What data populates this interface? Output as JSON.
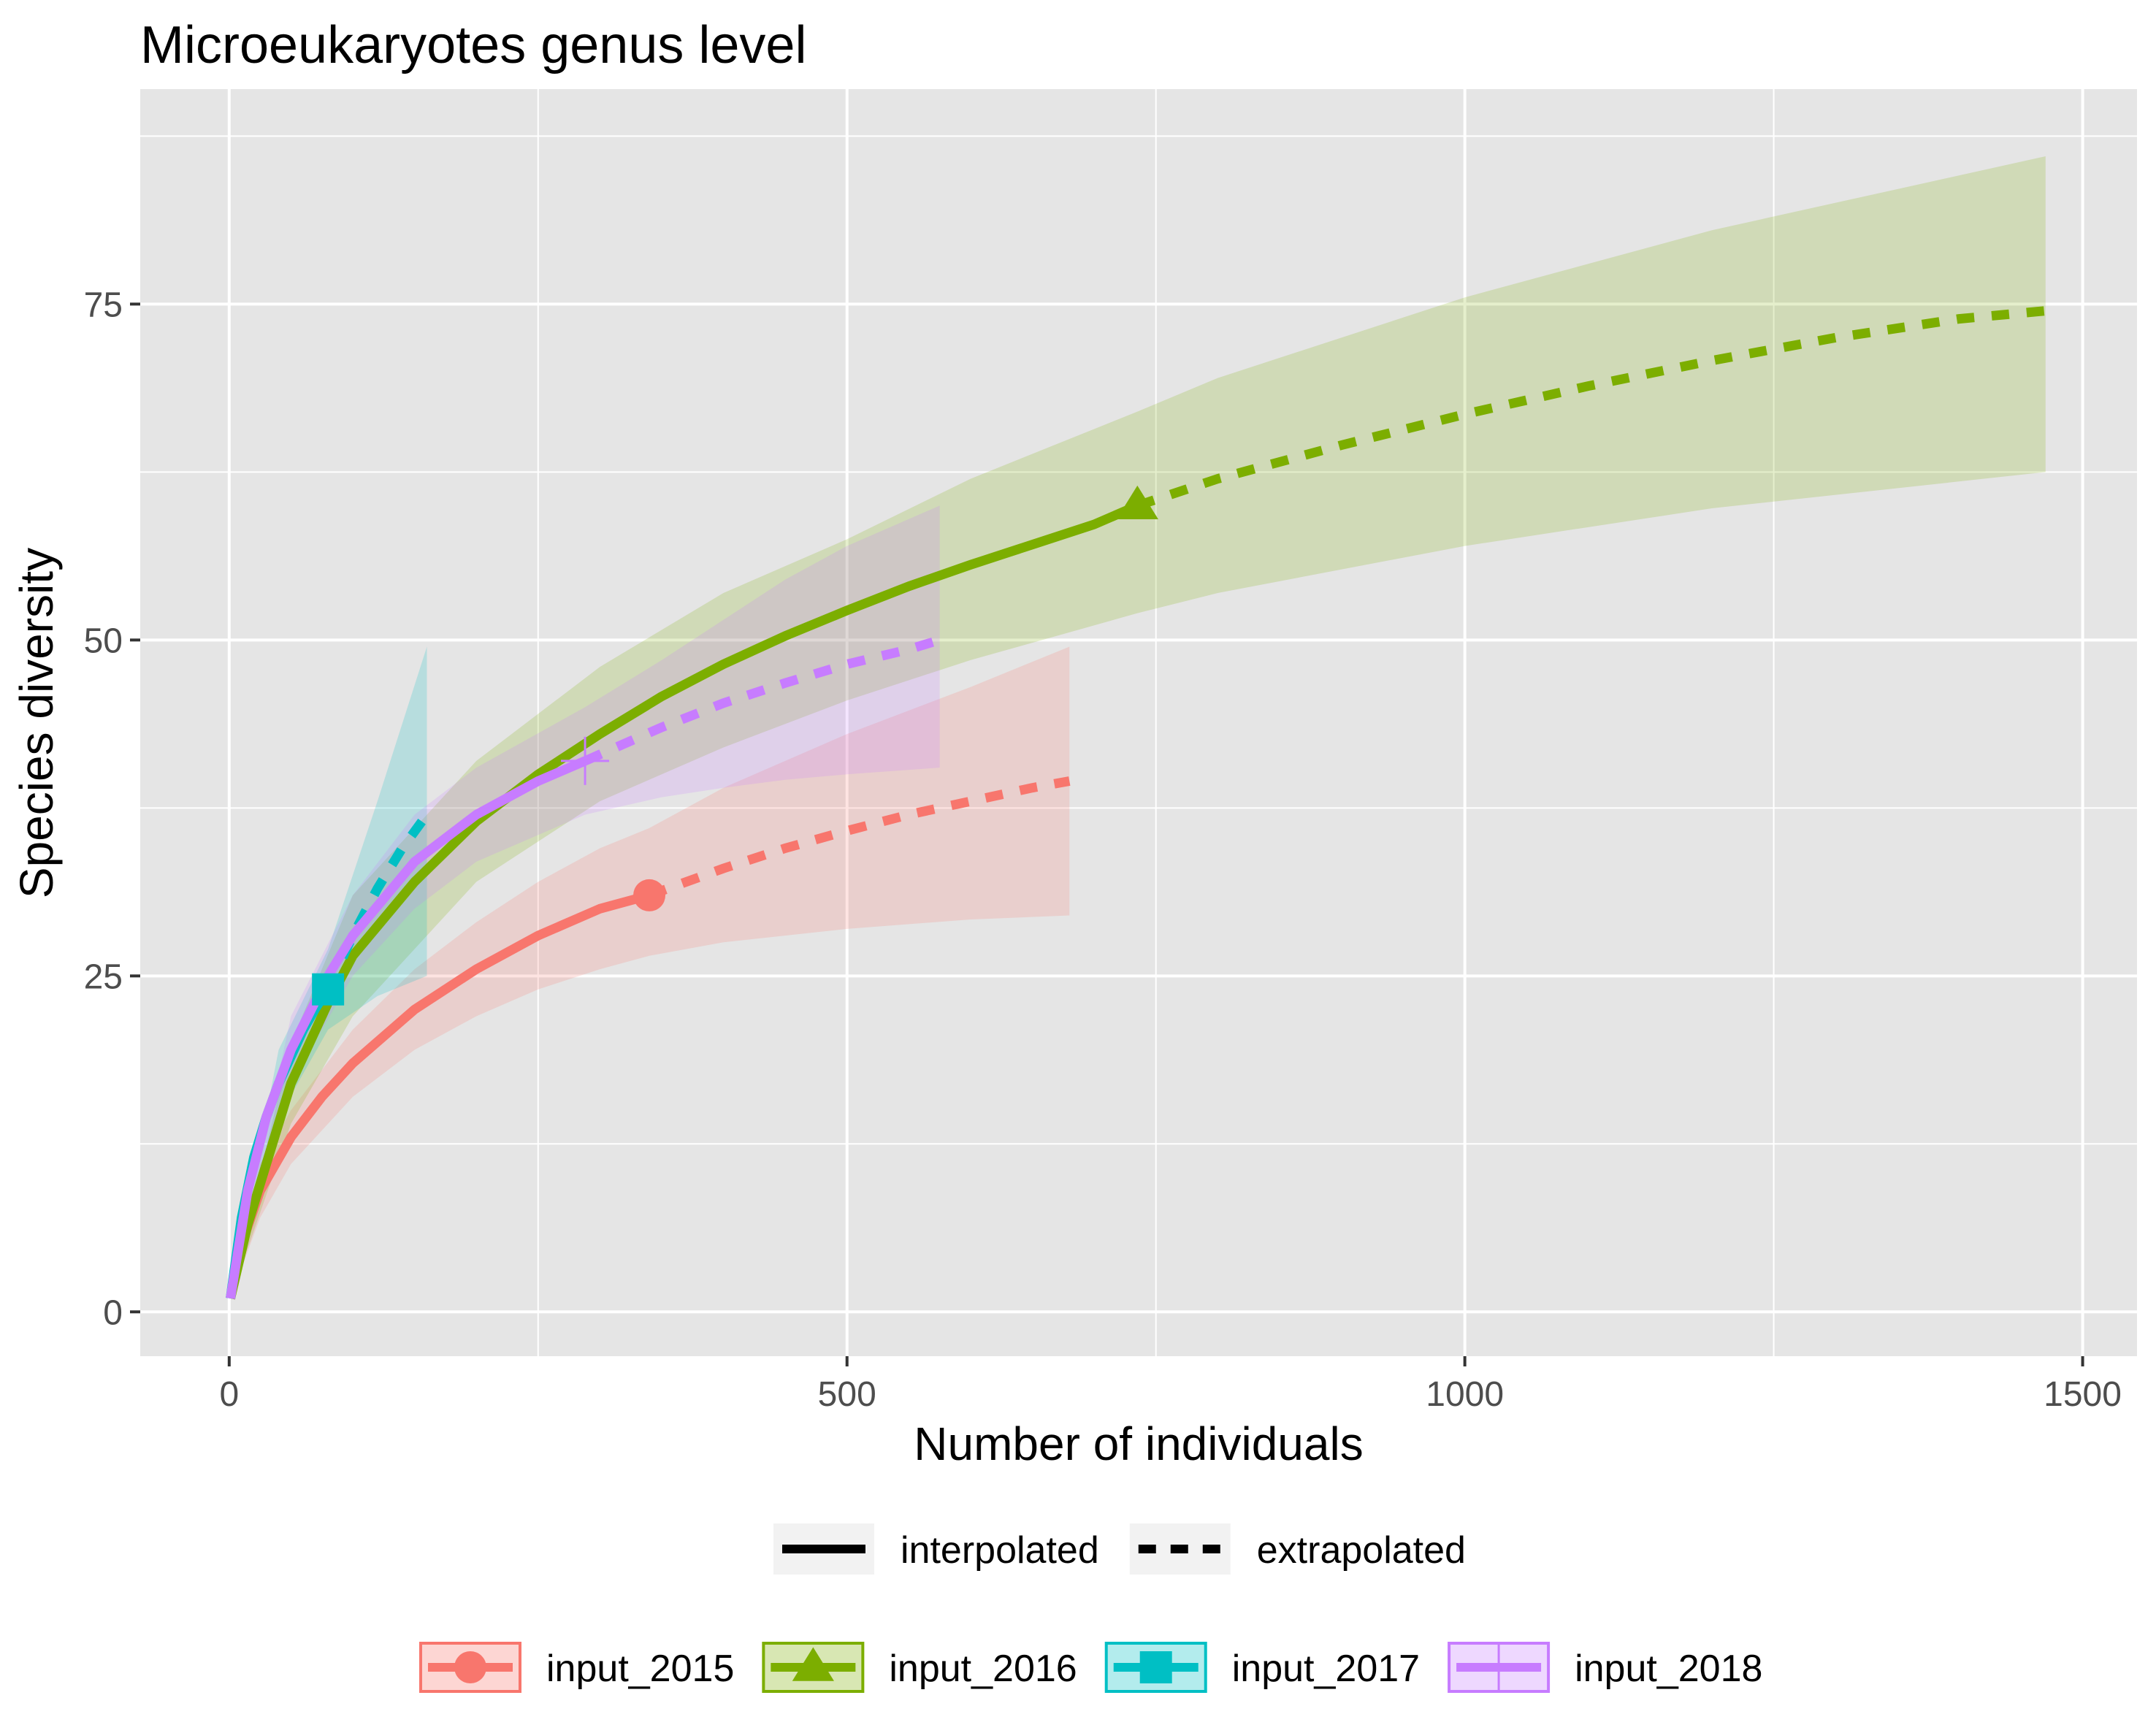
{
  "chart_data": {
    "type": "line",
    "title": "Microeukaryotes genus level",
    "xlabel": "Number of individuals",
    "ylabel": "Species diversity",
    "xlim": [
      -72,
      1544
    ],
    "ylim": [
      -3.3,
      91
    ],
    "x_ticks": [
      0,
      500,
      1000,
      1500
    ],
    "y_ticks": [
      0,
      25,
      50,
      75
    ],
    "x_tick_labels": [
      "0",
      "500",
      "1000",
      "1500"
    ],
    "y_tick_labels": [
      "0",
      "25",
      "50",
      "75"
    ],
    "grid": true,
    "legend_position": "bottom",
    "method_legend": [
      {
        "label": "interpolated",
        "linetype": "solid"
      },
      {
        "label": "extrapolated",
        "linetype": "dashed"
      }
    ],
    "series": [
      {
        "name": "input_2015",
        "color": "#F8766D",
        "marker": "circle",
        "observed": {
          "x": 340,
          "y": 31
        },
        "interpolated": {
          "x": [
            1,
            10,
            25,
            50,
            75,
            100,
            150,
            200,
            250,
            300,
            340
          ],
          "y": [
            1,
            5,
            9,
            13,
            16,
            18.5,
            22.5,
            25.5,
            28,
            30,
            31
          ]
        },
        "extrapolated": {
          "x": [
            340,
            400,
            450,
            500,
            550,
            600,
            650,
            680
          ],
          "y": [
            31,
            33,
            34.5,
            35.8,
            37,
            38,
            39,
            39.5
          ]
        },
        "ci_x": [
          1,
          25,
          50,
          100,
          150,
          200,
          250,
          300,
          340,
          400,
          500,
          600,
          680
        ],
        "ci_lower": [
          1,
          7,
          11,
          16,
          19.5,
          22,
          24,
          25.5,
          26.5,
          27.5,
          28.5,
          29.2,
          29.5
        ],
        "ci_upper": [
          1,
          11,
          15,
          21,
          25.5,
          29,
          32,
          34.5,
          36,
          39,
          43,
          46.5,
          49.5
        ]
      },
      {
        "name": "input_2016",
        "color": "#7CAE00",
        "marker": "triangle",
        "observed": {
          "x": 735,
          "y": 60
        },
        "interpolated": {
          "x": [
            1,
            15,
            30,
            50,
            80,
            100,
            150,
            200,
            250,
            300,
            350,
            400,
            450,
            500,
            550,
            600,
            650,
            700,
            735
          ],
          "y": [
            1,
            6.5,
            11,
            17,
            23,
            26.5,
            32,
            36.5,
            40,
            43,
            45.8,
            48.2,
            50.3,
            52.2,
            54,
            55.6,
            57.1,
            58.6,
            60
          ]
        },
        "extrapolated": {
          "x": [
            735,
            800,
            900,
            1000,
            1100,
            1200,
            1300,
            1400,
            1470
          ],
          "y": [
            60,
            62,
            64.5,
            66.8,
            68.9,
            70.8,
            72.5,
            73.9,
            74.5
          ]
        },
        "ci_x": [
          1,
          50,
          100,
          200,
          300,
          400,
          500,
          600,
          735,
          800,
          1000,
          1200,
          1470
        ],
        "ci_lower": [
          1,
          14,
          22,
          32,
          38,
          42,
          45.5,
          48.5,
          52,
          53.5,
          57,
          59.8,
          62.5
        ],
        "ci_upper": [
          1,
          20,
          31,
          41,
          48,
          53.5,
          57.5,
          62,
          67,
          69.5,
          75.5,
          80.5,
          86
        ]
      },
      {
        "name": "input_2017",
        "color": "#00BFC4",
        "marker": "square",
        "observed": {
          "x": 80,
          "y": 24
        },
        "interpolated": {
          "x": [
            1,
            10,
            20,
            30,
            40,
            50,
            60,
            70,
            80
          ],
          "y": [
            1,
            7,
            11.5,
            14.5,
            17,
            19,
            21,
            22.6,
            24
          ]
        },
        "extrapolated": {
          "x": [
            80,
            100,
            120,
            140,
            160
          ],
          "y": [
            24,
            28,
            31.5,
            34.5,
            37
          ]
        },
        "ci_x": [
          1,
          40,
          80,
          120,
          160
        ],
        "ci_lower": [
          1,
          14.5,
          21,
          23.5,
          25
        ],
        "ci_upper": [
          1,
          19.5,
          27,
          38,
          49.5
        ]
      },
      {
        "name": "input_2018",
        "color": "#C77CFF",
        "marker": "plus",
        "observed": {
          "x": 288,
          "y": 41
        },
        "interpolated": {
          "x": [
            1,
            15,
            30,
            50,
            80,
            100,
            150,
            200,
            250,
            288
          ],
          "y": [
            1,
            9,
            14.5,
            19.5,
            25,
            28,
            33.5,
            37,
            39.5,
            41
          ]
        },
        "extrapolated": {
          "x": [
            288,
            350,
            400,
            450,
            500,
            550,
            575
          ],
          "y": [
            41,
            43.5,
            45.3,
            46.8,
            48.2,
            49.3,
            50
          ]
        },
        "ci_x": [
          1,
          50,
          100,
          150,
          200,
          288,
          350,
          400,
          450,
          500,
          575
        ],
        "ci_lower": [
          1,
          17,
          25,
          30,
          33.5,
          37,
          38.3,
          39,
          39.6,
          40,
          40.5
        ],
        "ci_upper": [
          1,
          22,
          31,
          37,
          40.5,
          45,
          48.5,
          51.5,
          54.5,
          57,
          60
        ]
      }
    ]
  }
}
